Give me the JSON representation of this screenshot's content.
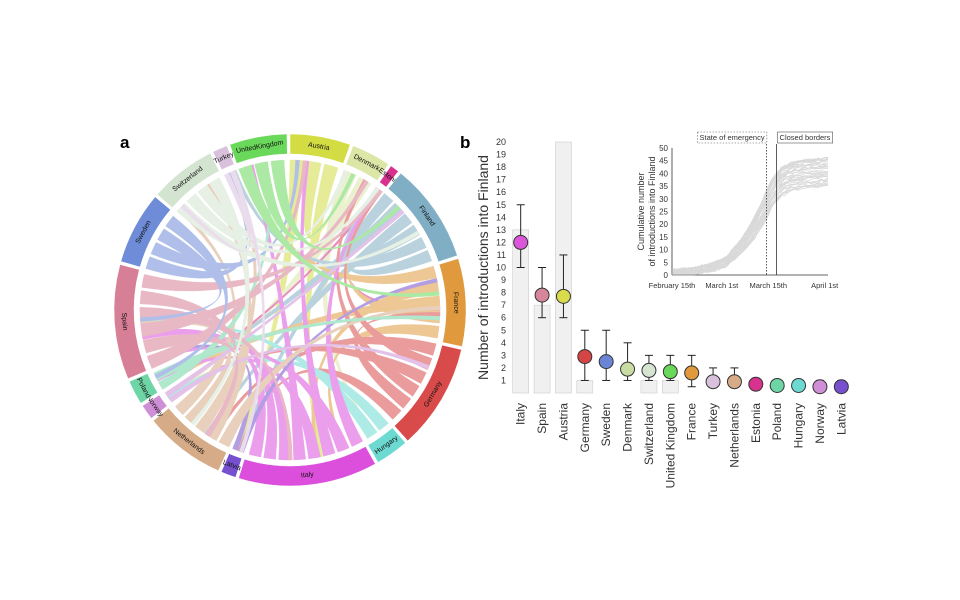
{
  "panel_labels": [
    "a",
    "b"
  ],
  "chord": {
    "segments": [
      {
        "label": "Austria",
        "color": "#d3dc43"
      },
      {
        "label": "Denmark",
        "color": "#dbe6a7"
      },
      {
        "label": "Estonia",
        "color": "#d8328e"
      },
      {
        "label": "Finland",
        "color": "#80aec4"
      },
      {
        "label": "France",
        "color": "#e09a3d"
      },
      {
        "label": "Germany",
        "color": "#d94b4b"
      },
      {
        "label": "Hungary",
        "color": "#6ddad2"
      },
      {
        "label": "Italy",
        "color": "#db4fdc"
      },
      {
        "label": "Latvia",
        "color": "#7650cf"
      },
      {
        "label": "Netherlands",
        "color": "#d6ab88"
      },
      {
        "label": "Norway",
        "color": "#cf8fd6"
      },
      {
        "label": "Poland",
        "color": "#6ed6a6"
      },
      {
        "label": "Spain",
        "color": "#d77f96"
      },
      {
        "label": "Sweden",
        "color": "#6f8cd8"
      },
      {
        "label": "Switzerland",
        "color": "#d3e4d0"
      },
      {
        "label": "Turkey",
        "color": "#d9c1de"
      },
      {
        "label": "UnitedKingdom",
        "color": "#6ad85a"
      }
    ]
  },
  "chart_data": [
    {
      "type": "scatter",
      "ylabel": "Number of introductions into Finland",
      "ylim": [
        0,
        20
      ],
      "yticks": [
        1,
        2,
        3,
        4,
        5,
        6,
        7,
        8,
        9,
        10,
        11,
        12,
        13,
        14,
        15,
        16,
        17,
        18,
        19,
        20
      ],
      "categories": [
        "Italy",
        "Spain",
        "Austria",
        "Germany",
        "Sweden",
        "Denmark",
        "Switzerland",
        "United Kingdom",
        "France",
        "Turkey",
        "Netherlands",
        "Estonia",
        "Poland",
        "Hungary",
        "Norway",
        "Latvia"
      ],
      "values": [
        12,
        7.8,
        7.7,
        2.9,
        2.5,
        1.9,
        1.8,
        1.7,
        1.6,
        0.9,
        0.9,
        0.7,
        0.6,
        0.6,
        0.5,
        0.5
      ],
      "err_low": [
        10,
        6,
        6,
        1,
        1,
        1,
        1,
        1,
        0.5,
        0.5,
        0.5,
        0.5,
        0.5,
        0.5,
        0.5,
        0.5
      ],
      "err_high": [
        15,
        10,
        11,
        5,
        5,
        4,
        3,
        3,
        3,
        2,
        2,
        1,
        1,
        1,
        1,
        1
      ],
      "bar_values": [
        13,
        7,
        20,
        1,
        0,
        0,
        1,
        1,
        0,
        0,
        0,
        0,
        0,
        0,
        0,
        0
      ],
      "colors": [
        "#dc56dc",
        "#d5869a",
        "#d9dc4a",
        "#d64545",
        "#6a84d6",
        "#c9dda3",
        "#d6e4d2",
        "#6ad85a",
        "#e09a3d",
        "#d9c1de",
        "#d6ab88",
        "#d8328e",
        "#6ed6a6",
        "#6ddad2",
        "#cf8fd6",
        "#7650cf"
      ]
    },
    {
      "type": "line",
      "ylabel": "Cumulative number of introductions into Finland",
      "ylabel_lines": [
        "Cumulative number",
        "of introductions into Finland"
      ],
      "ylim": [
        0,
        50
      ],
      "yticks": [
        0,
        5,
        10,
        15,
        20,
        25,
        30,
        35,
        40,
        45,
        50
      ],
      "xticks": [
        "February 15th",
        "March 1st",
        "March 15th",
        "April 1st"
      ],
      "xtick_positions": [
        0,
        15,
        29,
        46
      ],
      "xlim": [
        0,
        47
      ],
      "annotations": [
        {
          "text": "State of emergency",
          "x": 28.5,
          "style": "dotted"
        },
        {
          "text": "Closed borders",
          "x": 31.5,
          "style": "solid"
        }
      ],
      "median_curve_x": [
        0,
        6,
        12,
        16,
        20,
        24,
        27,
        30,
        33,
        36,
        40,
        44,
        47
      ],
      "median_curve_y": [
        1,
        1.5,
        3,
        5,
        10,
        17,
        24,
        32,
        37,
        39,
        40,
        40.5,
        41
      ],
      "color": "#bbbbbb"
    }
  ]
}
